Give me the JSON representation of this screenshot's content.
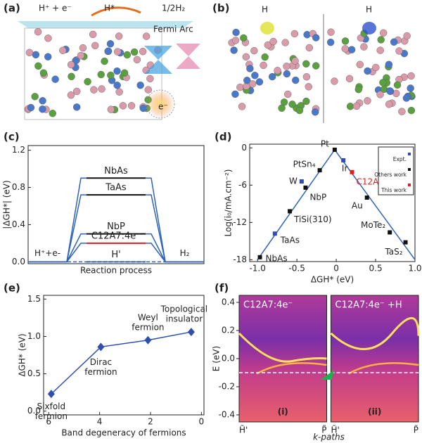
{
  "panels": [
    "(a)",
    "(b)",
    "(c)",
    "(d)",
    "(e)",
    "(f)"
  ],
  "panel_a": {
    "reaction": "H⁺ + e⁻",
    "adsorbed": "H*",
    "product": "1/2H₂",
    "arc_label": "Fermi Arc",
    "electron": "e⁻"
  },
  "panel_b": {
    "left_label": "H",
    "right_label": "H"
  },
  "chart_data": [
    {
      "type": "energy",
      "xlabel": "Reaction process",
      "ylabel": "|ΔGH*| (eV)",
      "categories": [
        "H⁺+e-",
        null,
        "H₂"
      ],
      "profile_color": "#2e63b8",
      "series": [
        {
          "name": "NbAs",
          "color": "#111111",
          "values": [
            0,
            0.9,
            0
          ]
        },
        {
          "name": "TaAs",
          "color": "#111111",
          "values": [
            0,
            0.72,
            0
          ]
        },
        {
          "name": "NbP",
          "color": "#111111",
          "values": [
            0,
            0.3,
            0
          ]
        },
        {
          "name": "C12A7:4e⁻",
          "color": "#e02020",
          "values": [
            0,
            0.2,
            0
          ]
        },
        {
          "name": "H'",
          "color": "#2e63b8",
          "dashed": true,
          "values": [
            0,
            0,
            0
          ]
        }
      ],
      "ylim": [
        -0.02,
        1.25
      ],
      "yticks": [
        {
          "value": 0,
          "label": "0.0"
        },
        0.4,
        0.8,
        1.2
      ]
    },
    {
      "type": "scatter",
      "xlabel": "ΔGH* (eV)",
      "ylabel": "Log(i₀/mA.cm⁻²)",
      "xlim": [
        -1.1,
        1.0
      ],
      "ylim": [
        -18.3,
        0.6
      ],
      "xticks": [
        {
          "value": -1,
          "label": "-1.0"
        },
        -0.5,
        0,
        0.5,
        {
          "value": 1,
          "label": "1.0"
        }
      ],
      "yticks": [
        -18,
        -12,
        -6,
        0
      ],
      "legend": "upper right",
      "fit": {
        "color": "#2e63b8",
        "x": [
          -1,
          -0.02,
          1
        ],
        "y": [
          -18,
          -0.3,
          -18
        ]
      },
      "series": [
        {
          "name": "Expt.",
          "color": "#2e4fb0",
          "x": [
            -0.78,
            -0.44,
            0.09
          ],
          "y": [
            -13.8,
            -5.4,
            -2.0
          ],
          "labels": [
            "TaAs",
            "W",
            "Ir"
          ]
        },
        {
          "name": "Others work",
          "color": "#111111",
          "x": [
            -0.97,
            -0.59,
            -0.39,
            -0.21,
            -0.02,
            0.39,
            0.68,
            0.88
          ],
          "y": [
            -17.6,
            -10.2,
            -6.4,
            -3.6,
            -0.3,
            -8.0,
            -13.6,
            -15.2
          ],
          "labels": [
            "NbAs",
            "TiSi(310)",
            "NbP",
            "PtSn₄",
            "Pt",
            "Au",
            "MoTe₂",
            "TaS₂"
          ]
        },
        {
          "name": "This work",
          "color": "#e02020",
          "x": [
            0.2
          ],
          "y": [
            -3.9
          ],
          "labels": [
            "C12A7:4e⁻"
          ]
        }
      ]
    },
    {
      "type": "line",
      "xlabel": "Band degeneracy of fermions",
      "ylabel": "ΔGH* (eV)",
      "xlim": [
        6.2,
        -0.1
      ],
      "ylim": [
        -0.05,
        1.55
      ],
      "xticks": [
        6,
        4,
        2,
        0
      ],
      "yticks": [
        {
          "value": 0,
          "label": "0.0"
        },
        0.5,
        {
          "value": 1,
          "label": "1.0"
        },
        1.5
      ],
      "color": "#2e4fb0",
      "x": [
        5.9,
        3.95,
        2.1,
        0.4
      ],
      "values": [
        0.23,
        0.86,
        0.95,
        1.06
      ],
      "labels": [
        [
          "Sixfold",
          "fermion"
        ],
        [
          "Dirac",
          "fermion"
        ],
        [
          "Weyl",
          "fermion"
        ],
        [
          "Topological",
          "insulator"
        ]
      ]
    },
    {
      "type": "image",
      "ylabel": "E (eV)",
      "xlabel": "k-paths",
      "ylim": [
        -0.45,
        0.45
      ],
      "yticks": [
        0.4,
        0.2,
        {
          "value": 0,
          "label": "0.0"
        },
        -0.2,
        -0.4
      ],
      "reference_line": -0.1,
      "xlabels": [
        "H̃'",
        "P̃",
        "H̃'",
        "P̃"
      ],
      "titles": [
        "C12A7:4e⁻",
        "C12A7:4e⁻ +H"
      ],
      "tags": [
        "(i)",
        "(ii)"
      ]
    }
  ]
}
